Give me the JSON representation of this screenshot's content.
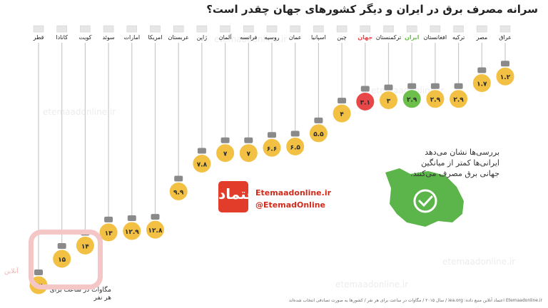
{
  "title": "سرانه مصرف برق در ایران و دیگر کشورهای جهان چقدر است؟",
  "watermark": "etemaadonline.ir",
  "note": "بررسی‌ها نشان می‌دهد ایرانی‌ها کمتر از میانگین جهانی برق مصرف می‌کنند.",
  "unit_label": "مگاوات در ساعت برای هر نفر",
  "footer": "Etemaadonline.ir   اعتماد آنلاین    منبع داده: iea.org  /  سال ۲۰۱۵ / مگاوات در ساعت برای هر نفر  /  کشورها به صورت تصادفی انتخاب شده‌اند",
  "brand": {
    "site": "Etemaadonline.ir",
    "handle": "@EtemadOnline",
    "logo_text": "اعتماد",
    "watermark_text": "آنلاین"
  },
  "colors": {
    "default": "#f2c043",
    "world": "#e8474a",
    "iran": "#6cbf4b",
    "line": "#c9c9c9",
    "map": "#5cb54a"
  },
  "chart_data": {
    "type": "bar",
    "title": "سرانه مصرف برق در ایران و دیگر کشورهای جهان چقدر است؟",
    "ylabel": "مگاوات در ساعت برای هر نفر",
    "ylim": [
      0,
      17
    ],
    "categories": [
      "قطر",
      "کانادا",
      "کویت",
      "سوئد",
      "امارات",
      "امریکا",
      "عربستان",
      "ژاپن",
      "آلمان",
      "فرانسه",
      "روسیه",
      "عمان",
      "اسپانیا",
      "چین",
      "جهان",
      "ترکمنستان",
      "ایران",
      "افغانستان",
      "ترکیه",
      "مصر",
      "عراق"
    ],
    "value_labels": [
      "۱۷",
      "۱۵",
      "۱۴",
      "۱۳",
      "۱۲.۹",
      "۱۲.۸",
      "۹.۹",
      "۷.۸",
      "۷",
      "۷",
      "۶.۶",
      "۶.۵",
      "۵.۵",
      "۴",
      "۳.۱",
      "۳",
      "۲.۹",
      "۲.۹",
      "۲.۹",
      "۱.۷",
      "۱.۲"
    ],
    "values": [
      17,
      15,
      14,
      13,
      12.9,
      12.8,
      9.9,
      7.8,
      7,
      7,
      6.6,
      6.5,
      5.5,
      4,
      3.1,
      3,
      2.9,
      2.9,
      2.9,
      1.7,
      1.2
    ],
    "highlights": {
      "جهان": "world",
      "ایران": "iran"
    },
    "grid": false
  }
}
